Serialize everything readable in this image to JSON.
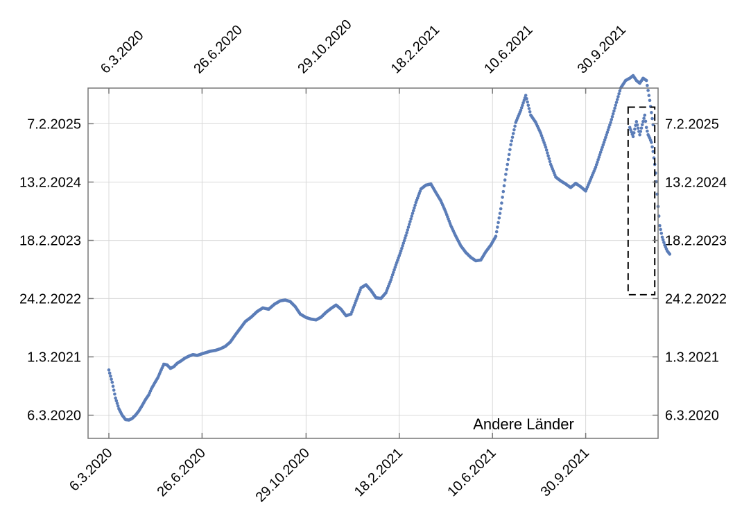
{
  "chart_data": {
    "type": "scatter",
    "title": "",
    "xlabel": "",
    "ylabel": "",
    "annotation": "Andere Länder",
    "grid": true,
    "point_color": "#5b7db8",
    "x_ticks_bottom": [
      "6.3.2020",
      "26.6.2020",
      "29.10.2020",
      "18.2.2021",
      "10.6.2021",
      "30.9.2021"
    ],
    "x_ticks_top": [
      "6.3.2020",
      "26.6.2020",
      "29.10.2020",
      "18.2.2021",
      "10.6.2021",
      "30.9.2021"
    ],
    "y_ticks_left": [
      "6.3.2020",
      "1.3.2021",
      "24.2.2022",
      "18.2.2023",
      "13.2.2024",
      "7.2.2025"
    ],
    "y_ticks_right": [
      "6.3.2020",
      "1.3.2021",
      "24.2.2022",
      "18.2.2023",
      "13.2.2024",
      "7.2.2025"
    ],
    "xlim": [
      "2020-02-10",
      "2021-12-26"
    ],
    "ylim": [
      "2019-10-15",
      "2025-09-15"
    ],
    "highlight_box": {
      "x": [
        "2021-11-20",
        "2021-12-22"
      ],
      "y": [
        "2022-03-20",
        "2025-05-20"
      ]
    },
    "series": [
      {
        "x": [
          "2020-03-06",
          "2020-03-10",
          "2020-03-14",
          "2020-03-18",
          "2020-03-22",
          "2020-03-26",
          "2020-03-30",
          "2020-04-03",
          "2020-04-07",
          "2020-04-11",
          "2020-04-15",
          "2020-04-19",
          "2020-04-23",
          "2020-04-26",
          "2020-04-30",
          "2020-05-04",
          "2020-05-07",
          "2020-05-11",
          "2020-05-15",
          "2020-05-19",
          "2020-05-23",
          "2020-05-27",
          "2020-06-01",
          "2020-06-05",
          "2020-06-10",
          "2020-06-15",
          "2020-06-20",
          "2020-06-26",
          "2020-07-01",
          "2020-07-06",
          "2020-07-12",
          "2020-07-18",
          "2020-07-24",
          "2020-07-30",
          "2020-08-05",
          "2020-08-11",
          "2020-08-17",
          "2020-08-24",
          "2020-08-31",
          "2020-09-07",
          "2020-09-14",
          "2020-09-21",
          "2020-09-28",
          "2020-10-04",
          "2020-10-10",
          "2020-10-16",
          "2020-10-22",
          "2020-10-29",
          "2020-11-04",
          "2020-11-10",
          "2020-11-16",
          "2020-11-22",
          "2020-11-28",
          "2020-12-04",
          "2020-12-10",
          "2020-12-16",
          "2020-12-22",
          "2020-12-28",
          "2021-01-03",
          "2021-01-09",
          "2021-01-15",
          "2021-01-21",
          "2021-01-27",
          "2021-02-02",
          "2021-02-08",
          "2021-02-14",
          "2021-02-20",
          "2021-02-26",
          "2021-03-04",
          "2021-03-10",
          "2021-03-16",
          "2021-03-22",
          "2021-03-28",
          "2021-04-03",
          "2021-04-09",
          "2021-04-15",
          "2021-04-21",
          "2021-04-27",
          "2021-05-03",
          "2021-05-09",
          "2021-05-15",
          "2021-05-21",
          "2021-05-27",
          "2021-06-02",
          "2021-06-08",
          "2021-06-14",
          "2021-06-20",
          "2021-06-26",
          "2021-07-02",
          "2021-07-08",
          "2021-07-14",
          "2021-07-20",
          "2021-07-26",
          "2021-08-01",
          "2021-08-07",
          "2021-08-13",
          "2021-08-19",
          "2021-08-25",
          "2021-08-31",
          "2021-09-06",
          "2021-09-12",
          "2021-09-18",
          "2021-09-24",
          "2021-09-30",
          "2021-10-06",
          "2021-10-12",
          "2021-10-18",
          "2021-10-24",
          "2021-10-30",
          "2021-11-05",
          "2021-11-11",
          "2021-11-17",
          "2021-11-22",
          "2021-11-26",
          "2021-11-30",
          "2021-12-04",
          "2021-12-08",
          "2021-12-12",
          "2021-12-16",
          "2021-12-20"
        ],
        "y": [
          "2020-12-10",
          "2020-09-25",
          "2020-06-20",
          "2020-04-15",
          "2020-03-06",
          "2020-02-08",
          "2020-02-05",
          "2020-02-15",
          "2020-03-06",
          "2020-04-01",
          "2020-05-05",
          "2020-06-10",
          "2020-07-10",
          "2020-08-15",
          "2020-09-20",
          "2020-10-25",
          "2020-11-30",
          "2021-01-15",
          "2021-01-10",
          "2020-12-20",
          "2020-12-30",
          "2021-01-20",
          "2021-02-05",
          "2021-02-20",
          "2021-03-05",
          "2021-03-15",
          "2021-03-10",
          "2021-03-20",
          "2021-03-28",
          "2021-04-05",
          "2021-04-10",
          "2021-04-20",
          "2021-05-05",
          "2021-06-01",
          "2021-07-15",
          "2021-08-25",
          "2021-10-05",
          "2021-11-01",
          "2021-12-05",
          "2021-12-28",
          "2021-12-20",
          "2022-01-20",
          "2022-02-10",
          "2022-02-15",
          "2022-02-05",
          "2022-01-05",
          "2021-11-20",
          "2021-10-30",
          "2021-10-20",
          "2021-10-15",
          "2021-11-01",
          "2021-12-01",
          "2021-12-25",
          "2022-01-15",
          "2021-12-20",
          "2021-11-10",
          "2021-11-20",
          "2022-02-10",
          "2022-05-01",
          "2022-05-20",
          "2022-04-15",
          "2022-03-01",
          "2022-02-25",
          "2022-04-01",
          "2022-06-20",
          "2022-09-20",
          "2022-12-15",
          "2023-03-20",
          "2023-07-01",
          "2023-10-10",
          "2024-01-01",
          "2024-01-25",
          "2024-02-01",
          "2023-12-10",
          "2023-10-20",
          "2023-08-10",
          "2023-05-20",
          "2023-03-15",
          "2023-01-15",
          "2022-12-05",
          "2022-11-05",
          "2022-10-15",
          "2022-10-20",
          "2022-12-10",
          "2023-01-20",
          "2023-03-15",
          "2023-09-01",
          "2024-04-01",
          "2024-10-01",
          "2025-02-15",
          "2025-05-01",
          "2025-08-01",
          "2025-04-01",
          "2025-02-15",
          "2024-12-10",
          "2024-09-15",
          "2024-06-01",
          "2024-03-15",
          "2024-02-20",
          "2024-02-01",
          "2024-01-10",
          "2024-02-05",
          "2024-01-15",
          "2023-12-20",
          "2024-03-01",
          "2024-05-15",
          "2024-08-15",
          "2024-11-15",
          "2025-02-15",
          "2025-06-01",
          "2025-09-15",
          "2025-11-01",
          "2025-11-15",
          "2025-12-01",
          "2025-11-01",
          "2025-10-15",
          "2025-11-15",
          "2025-11-01",
          "2025-07-01",
          "2025-02-01"
        ]
      },
      {
        "x": [
          "2021-11-22",
          "2021-11-26",
          "2021-11-30",
          "2021-12-04",
          "2021-12-07",
          "2021-12-10",
          "2021-12-12",
          "2021-12-14",
          "2021-12-16",
          "2021-12-18",
          "2021-12-20",
          "2021-12-22",
          "2021-12-24",
          "2021-12-26",
          "2021-12-28",
          "2021-12-31",
          "2022-01-03",
          "2022-01-06",
          "2022-01-09"
        ],
        "y": [
          "2025-01-15",
          "2024-11-20",
          "2025-02-20",
          "2024-12-01",
          "2025-02-01",
          "2025-04-01",
          "2025-01-15",
          "2024-12-01",
          "2024-11-10",
          "2024-10-15",
          "2024-08-20",
          "2024-06-01",
          "2024-02-15",
          "2023-09-15",
          "2023-05-20",
          "2023-03-10",
          "2023-01-20",
          "2022-12-15",
          "2022-11-25"
        ]
      }
    ]
  }
}
